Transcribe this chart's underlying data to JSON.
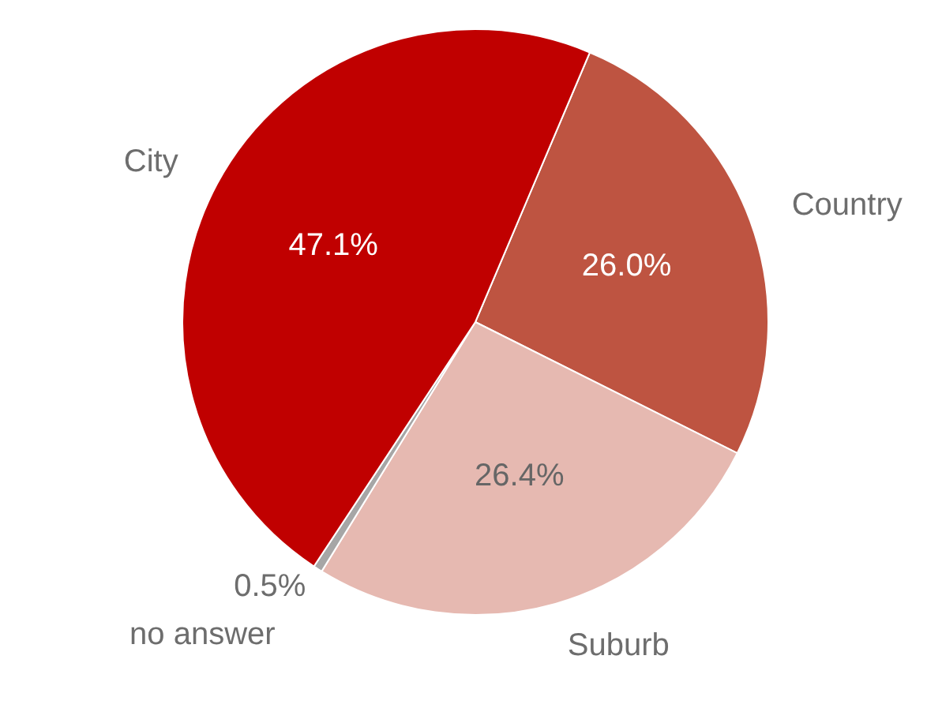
{
  "chart_data": {
    "type": "pie",
    "categories": [
      "Country",
      "Suburb",
      "no answer",
      "City"
    ],
    "values": [
      26.0,
      26.4,
      0.5,
      47.1
    ],
    "colors": [
      "#be5441",
      "#e6b9b1",
      "#a6a6a6",
      "#c00000"
    ],
    "value_labels": [
      "26.0%",
      "26.4%",
      "0.5%",
      "47.1%"
    ],
    "legend": false
  }
}
